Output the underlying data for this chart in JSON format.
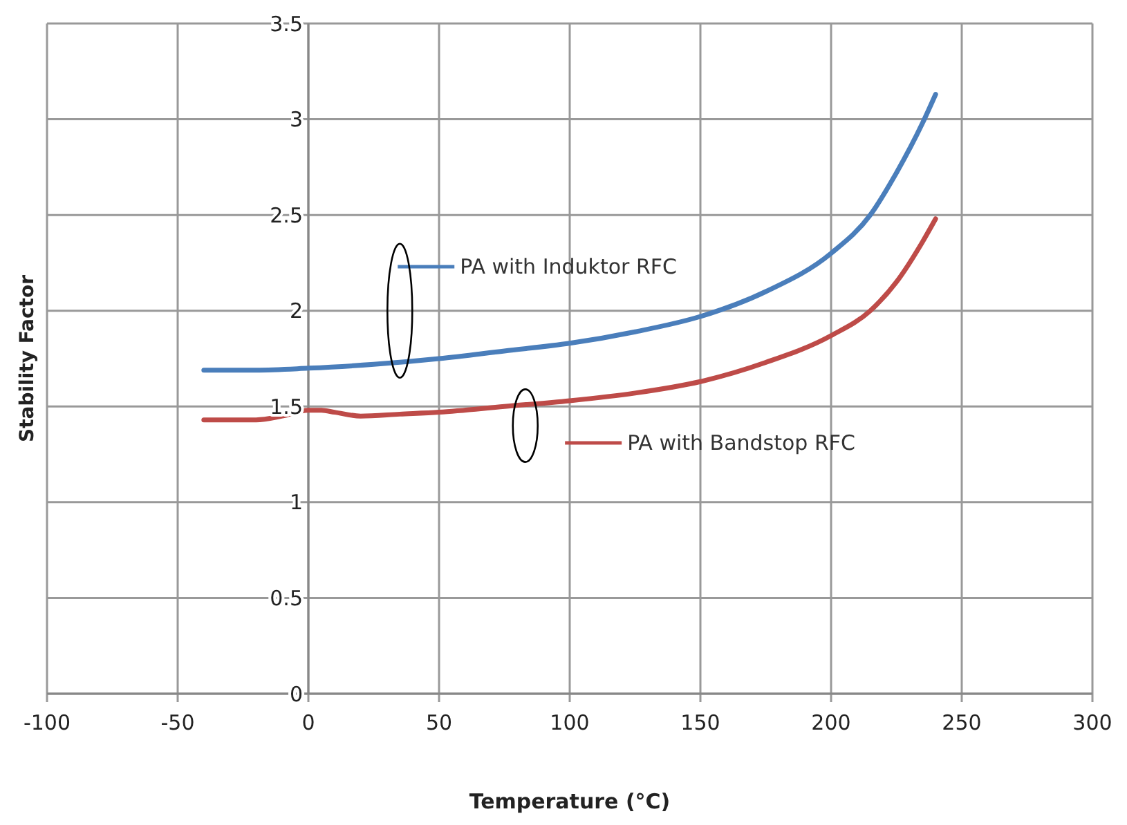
{
  "chart_data": {
    "type": "line",
    "xlabel": "Temperature (°C)",
    "ylabel": "Stability Factor",
    "xlim": [
      -100,
      300
    ],
    "xticks": [
      -100,
      -50,
      0,
      50,
      100,
      150,
      200,
      250,
      300
    ],
    "ylim": [
      0,
      3.5
    ],
    "yticks": [
      0,
      0.5,
      1,
      1.5,
      2,
      2.5,
      3,
      3.5
    ],
    "grid": true,
    "legend": "center",
    "marker": "none",
    "line_style": "solid",
    "series": [
      {
        "name": "PA with Induktor RFC",
        "color": "#4a7ebb",
        "x": [
          -40,
          -20,
          0,
          25,
          50,
          75,
          100,
          125,
          150,
          175,
          200,
          215,
          225,
          235,
          240
        ],
        "values": [
          1.69,
          1.69,
          1.7,
          1.72,
          1.75,
          1.79,
          1.83,
          1.89,
          1.97,
          2.1,
          2.3,
          2.5,
          2.72,
          2.98,
          3.13
        ]
      },
      {
        "name": "PA with Bandstop RFC",
        "color": "#be4b48",
        "x": [
          -40,
          -20,
          -10,
          0,
          5,
          10,
          20,
          35,
          50,
          75,
          100,
          125,
          150,
          175,
          200,
          215,
          225,
          235,
          240
        ],
        "values": [
          1.43,
          1.43,
          1.45,
          1.48,
          1.48,
          1.47,
          1.45,
          1.46,
          1.47,
          1.5,
          1.53,
          1.57,
          1.63,
          1.73,
          1.87,
          2.0,
          2.15,
          2.36,
          2.48
        ]
      }
    ]
  }
}
